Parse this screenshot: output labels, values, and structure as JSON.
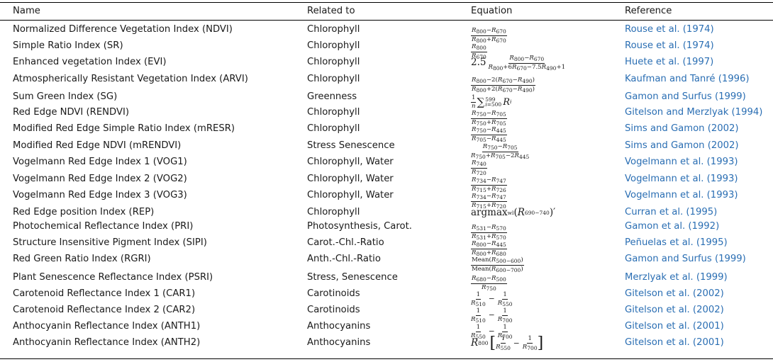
{
  "header": {
    "name": "Name",
    "related": "Related to",
    "equation": "Equation",
    "reference": "Reference"
  },
  "rows": [
    {
      "name": "Normalized Difference Vegetation Index (NDVI)",
      "related": "Chlorophyll",
      "equation": {
        "num": "R800−R670",
        "den": "R800+R670"
      },
      "reference": "Rouse et al. (1974)"
    },
    {
      "name": "Simple Ratio Index (SR)",
      "related": "Chlorophyll",
      "equation": {
        "num": "R800",
        "den": "R670"
      },
      "reference": "Rouse et al. (1974)"
    },
    {
      "name": "Enhanced vegetation Index (EVI)",
      "related": "Chlorophyll",
      "equation": {
        "prefix": "2.5",
        "num": "R800−R670",
        "den": "R800+6R670−7.5R490+1"
      },
      "reference": "Huete et al. (1997)"
    },
    {
      "name": "Atmospherically Resistant Vegetation Index (ARVI)",
      "related": "Chlorophyll",
      "equation": {
        "num": "R800−2(R670−R490)",
        "den": "R800+2(R670−R490)"
      },
      "reference": "Kaufman and Tanré (1996)"
    },
    {
      "name": "Sum Green Index (SG)",
      "related": "Greenness",
      "equation": {
        "text": "1/n ∑ i=500..599 Ri"
      },
      "reference": "Gamon and Surfus (1999)"
    },
    {
      "name": "Red Edge NDVI (RENDVI)",
      "related": "Chlorophyll",
      "equation": {
        "num": "R750−R705",
        "den": "R750+R705"
      },
      "reference": "Gitelson and Merzlyak (1994)"
    },
    {
      "name": "Modified Red Edge Simple Ratio Index (mRESR)",
      "related": "Chlorophyll",
      "equation": {
        "num": "R750−R445",
        "den": "R705−R445"
      },
      "reference": "Sims and Gamon (2002)"
    },
    {
      "name": "Modified Red Edge NDVI (mRENDVI)",
      "related": "Stress Senescence",
      "equation": {
        "num": "R750−R705",
        "den": "R750+R705−2R445"
      },
      "reference": "Sims and Gamon (2002)"
    },
    {
      "name": "Vogelmann Red Edge Index 1 (VOG1)",
      "related": "Chlorophyll, Water",
      "equation": {
        "num": "R740",
        "den": "R720"
      },
      "reference": "Vogelmann et al. (1993)"
    },
    {
      "name": "Vogelmann Red Edge Index 2 (VOG2)",
      "related": "Chlorophyll, Water",
      "equation": {
        "num": "R734−R747",
        "den": "R715+R726"
      },
      "reference": "Vogelmann et al. (1993)"
    },
    {
      "name": "Vogelmann Red Edge Index 3 (VOG3)",
      "related": "Chlorophyll, Water",
      "equation": {
        "num": "R734−R747",
        "den": "R715+R720"
      },
      "reference": "Vogelmann et al. (1993)"
    },
    {
      "name": "Red Edge position Index (REP)",
      "related": "Chlorophyll",
      "equation": {
        "text": "argmaxwl(R690−740)′"
      },
      "reference": "Curran et al. (1995)"
    },
    {
      "name": "Photochemical Reflectance Index (PRI)",
      "related": "Photosynthesis, Carot.",
      "equation": {
        "num": "R531−R570",
        "den": "R531+R570"
      },
      "reference": "Gamon et al. (1992)"
    },
    {
      "name": "Structure Insensitive Pigment Index (SIPI)",
      "related": "Carot.-Chl.-Ratio",
      "equation": {
        "num": "R800−R445",
        "den": "R800+R680"
      },
      "reference": "Peñuelas et al. (1995)"
    },
    {
      "name": "Red Green Ratio Index (RGRI)",
      "related": "Anth.-Chl.-Ratio",
      "equation": {
        "num": "Mean(R500−600)",
        "den": "Mean(R600−700)"
      },
      "reference": "Gamon and Surfus (1999)"
    },
    {
      "name": "Plant Senescence Reflectance Index (PSRI)",
      "related": "Stress, Senescence",
      "equation": {
        "num": "R680−R500",
        "den": "R750"
      },
      "reference": "Merzlyak et al. (1999)"
    },
    {
      "name": "Carotenoid Reflectance Index 1 (CAR1)",
      "related": "Carotinoids",
      "equation": {
        "text": "1/R510 − 1/R550"
      },
      "reference": "Gitelson et al. (2002)"
    },
    {
      "name": "Carotenoid Reflectance Index 2 (CAR2)",
      "related": "Carotinoids",
      "equation": {
        "text": "1/R510 − 1/R700"
      },
      "reference": "Gitelson et al. (2002)"
    },
    {
      "name": "Anthocyanin Reflectance Index (ANTH1)",
      "related": "Anthocyanins",
      "equation": {
        "text": "1/R550 − 1/R700"
      },
      "reference": "Gitelson et al. (2001)"
    },
    {
      "name": "Anthocyanin Reflectance Index (ANTH2)",
      "related": "Anthocyanins",
      "equation": {
        "text": "R800 [1/R550 − 1/R700]"
      },
      "reference": "Gitelson et al. (2001)"
    }
  ],
  "colors": {
    "reference_link": "#2a6eb3",
    "rule": "#000000"
  }
}
